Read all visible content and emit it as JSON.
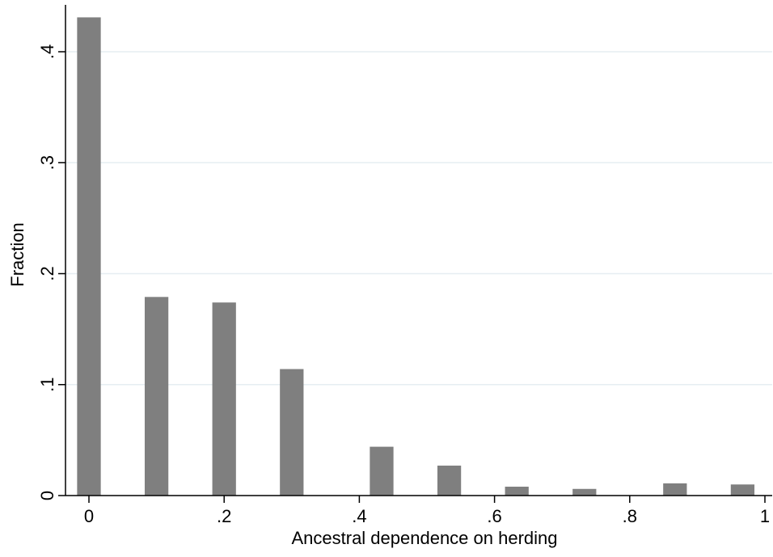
{
  "colors": {
    "bar": "#7f7f7f",
    "grid": "#e6eef2",
    "axis": "#000000",
    "background": "#ffffff"
  },
  "chart_data": {
    "type": "bar",
    "title": "",
    "xlabel": "Ancestral dependence on herding",
    "ylabel": "Fraction",
    "xlim": [
      -0.05,
      1.0
    ],
    "ylim": [
      0,
      0.43
    ],
    "grid": true,
    "bar_width": 0.035,
    "x": [
      0.0,
      0.1,
      0.2,
      0.3,
      0.433,
      0.533,
      0.633,
      0.733,
      0.867,
      0.967
    ],
    "values": [
      0.431,
      0.179,
      0.174,
      0.114,
      0.044,
      0.027,
      0.008,
      0.006,
      0.011,
      0.01
    ],
    "x_ticks": [
      0,
      0.2,
      0.4,
      0.6,
      0.8,
      1.0
    ],
    "x_tick_labels": [
      "0",
      ".2",
      ".4",
      ".6",
      ".8",
      "1"
    ],
    "y_ticks": [
      0,
      0.1,
      0.2,
      0.3,
      0.4
    ],
    "y_tick_labels": [
      "0",
      ".1",
      ".2",
      ".3",
      ".4"
    ]
  }
}
